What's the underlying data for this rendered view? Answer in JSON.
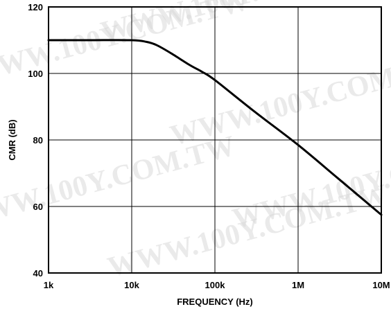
{
  "chart_data": {
    "type": "line",
    "xlabel": "FREQUENCY (Hz)",
    "ylabel": "CMR (dB)",
    "xscale": "log",
    "xlim": [
      1000,
      10000000
    ],
    "ylim": [
      40,
      120
    ],
    "x_ticks": [
      1000,
      10000,
      100000,
      1000000,
      10000000
    ],
    "x_tick_labels": [
      "1k",
      "10k",
      "100k",
      "1M",
      "10M"
    ],
    "y_ticks": [
      40,
      60,
      80,
      100,
      120
    ],
    "y_tick_labels": [
      "40",
      "60",
      "80",
      "100",
      "120"
    ],
    "grid": true,
    "series": [
      {
        "color": "#000000",
        "x": [
          1000,
          3000,
          10000,
          15000,
          20000,
          30000,
          50000,
          70000,
          100000,
          300000,
          1000000,
          3000000,
          10000000
        ],
        "y": [
          110,
          110,
          110,
          109.5,
          108.5,
          106,
          102.5,
          100.5,
          98,
          88.5,
          78.5,
          68.5,
          57.5
        ]
      }
    ]
  },
  "watermark": "WWW.100Y.COM.TW"
}
